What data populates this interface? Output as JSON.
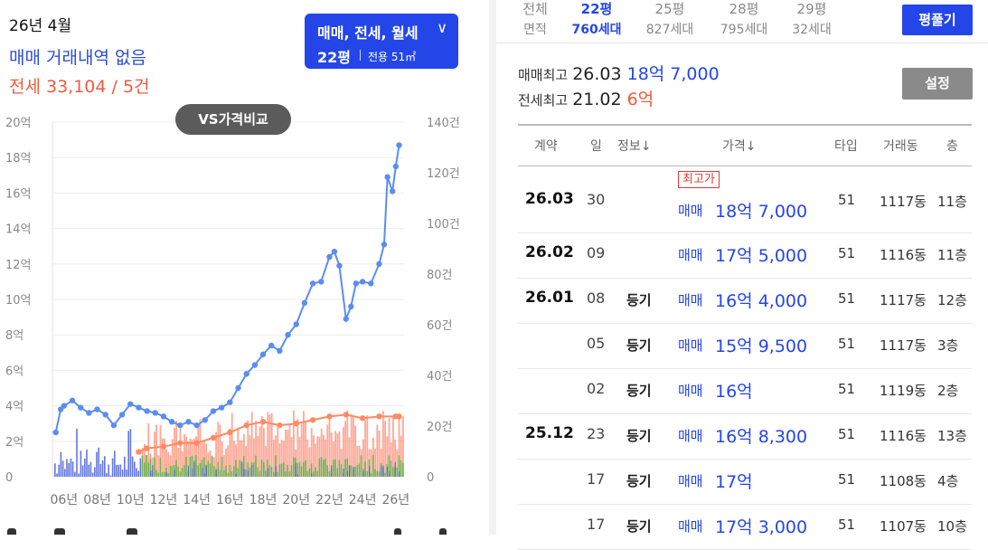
{
  "summary": {
    "date": "26년 4월",
    "trade": "매매 거래내역 없음",
    "jeonse": "전세 33,104 / 5건"
  },
  "type_selector": {
    "types": "매매, 전세, 월세",
    "area": "22평",
    "exclusive": "전용 51㎡"
  },
  "vs_button": "VS가격비교",
  "chart_data": {
    "type": "line",
    "x_tick_labels": [
      "06년",
      "08년",
      "10년",
      "12년",
      "14년",
      "16년",
      "18년",
      "20년",
      "22년",
      "24년",
      "26년"
    ],
    "y_left_tick_labels": [
      "0",
      "2억",
      "4억",
      "6억",
      "8억",
      "10억",
      "12억",
      "14억",
      "16억",
      "18억",
      "20억"
    ],
    "y_right_tick_labels": [
      "0",
      "20건",
      "40건",
      "60건",
      "80건",
      "100건",
      "120건",
      "140건"
    ],
    "y_left_range": [
      0,
      20
    ],
    "y_right_range": [
      0,
      140
    ],
    "colors": {
      "sale_line": "#5b8def",
      "jeonse_line": "#ff8a65",
      "sale_volume": "#4a5fd8",
      "jeonse_volume": "#ff8a70",
      "monthly_volume": "#5fb34a"
    },
    "series": [
      {
        "x": [
          2005.5,
          2005.8,
          2006.0,
          2006.5,
          2007.0,
          2007.5,
          2008.0,
          2008.5,
          2009.0,
          2009.5,
          2010.0,
          2010.5,
          2011.0,
          2011.5,
          2012.0,
          2012.5,
          2013.0,
          2013.5,
          2014.0,
          2014.5,
          2015.0,
          2015.5,
          2016.0,
          2016.5,
          2017.0,
          2017.5,
          2018.0,
          2018.5,
          2019.0,
          2019.5,
          2020.0,
          2020.5,
          2021.0,
          2021.5,
          2022.0,
          2022.3,
          2022.6,
          2023.0,
          2023.3,
          2023.6,
          2024.0,
          2024.5,
          2025.0,
          2025.3,
          2025.5,
          2025.8,
          2026.0,
          2026.2
        ],
        "values": [
          2.5,
          3.8,
          4.0,
          4.3,
          3.9,
          3.6,
          3.8,
          3.5,
          2.9,
          3.5,
          4.1,
          3.9,
          3.7,
          3.6,
          3.4,
          3.1,
          2.9,
          3.1,
          2.9,
          3.2,
          3.7,
          3.9,
          4.2,
          5.0,
          5.8,
          6.3,
          6.9,
          7.4,
          7.1,
          8.0,
          8.6,
          9.8,
          10.9,
          11.0,
          12.4,
          12.7,
          11.9,
          8.9,
          9.6,
          10.9,
          11.0,
          10.9,
          12.0,
          13.1,
          16.9,
          16.1,
          17.5,
          18.7
        ]
      },
      {
        "x": [
          2010.5,
          2011.0,
          2012.0,
          2013.0,
          2014.0,
          2015.0,
          2016.0,
          2017.0,
          2018.0,
          2019.0,
          2020.0,
          2021.0,
          2022.0,
          2023.0,
          2024.0,
          2025.0,
          2026.0,
          2026.2
        ],
        "values": [
          1.4,
          1.6,
          1.7,
          1.9,
          1.9,
          2.2,
          2.5,
          2.9,
          3.1,
          2.9,
          3.0,
          3.2,
          3.4,
          3.5,
          3.3,
          3.4,
          3.4,
          3.4
        ]
      }
    ]
  },
  "area_tabs": [
    {
      "label": "전체",
      "sub": "면적"
    },
    {
      "label": "22평",
      "sub": "760세대"
    },
    {
      "label": "25평",
      "sub": "827세대"
    },
    {
      "label": "28평",
      "sub": "795세대"
    },
    {
      "label": "29평",
      "sub": "32세대"
    }
  ],
  "expand_button": "평풀기",
  "max": {
    "sale_label": "매매최고",
    "sale_date": "26.03",
    "sale_price": "18억 7,000",
    "rent_label": "전세최고",
    "rent_date": "21.02",
    "rent_price": "6억"
  },
  "setting_button": "설정",
  "table": {
    "headers": [
      "계약",
      "일",
      "정보↓",
      "가격↓",
      "타입",
      "거래동",
      "층"
    ],
    "rows": [
      {
        "ym": "26.03",
        "day": "30",
        "info": "",
        "badge": "최고가",
        "kind": "매매",
        "price": "18억 7,000",
        "type": "51",
        "dong": "1117동",
        "floor": "11층"
      },
      {
        "ym": "26.02",
        "day": "09",
        "info": "",
        "badge": "",
        "kind": "매매",
        "price": "17억 5,000",
        "type": "51",
        "dong": "1116동",
        "floor": "11층"
      },
      {
        "ym": "26.01",
        "day": "08",
        "info": "등기",
        "badge": "",
        "kind": "매매",
        "price": "16억 4,000",
        "type": "51",
        "dong": "1117동",
        "floor": "12층"
      },
      {
        "ym": "",
        "day": "05",
        "info": "등기",
        "badge": "",
        "kind": "매매",
        "price": "15억 9,500",
        "type": "51",
        "dong": "1117동",
        "floor": "3층"
      },
      {
        "ym": "",
        "day": "02",
        "info": "등기",
        "badge": "",
        "kind": "매매",
        "price": "16억",
        "type": "51",
        "dong": "1119동",
        "floor": "2층"
      },
      {
        "ym": "25.12",
        "day": "23",
        "info": "등기",
        "badge": "",
        "kind": "매매",
        "price": "16억 8,300",
        "type": "51",
        "dong": "1116동",
        "floor": "13층"
      },
      {
        "ym": "",
        "day": "17",
        "info": "등기",
        "badge": "",
        "kind": "매매",
        "price": "17억",
        "type": "51",
        "dong": "1108동",
        "floor": "4층"
      },
      {
        "ym": "",
        "day": "17",
        "info": "등기",
        "badge": "",
        "kind": "매매",
        "price": "17억 3,000",
        "type": "51",
        "dong": "1107동",
        "floor": "10층"
      }
    ]
  }
}
